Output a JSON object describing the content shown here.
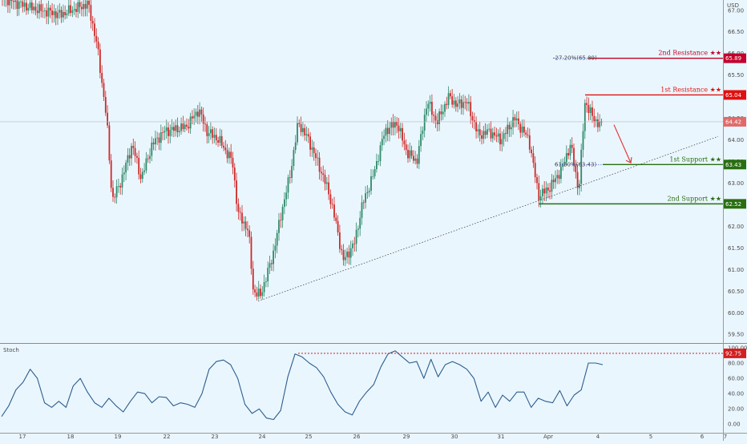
{
  "chart_data": {
    "type": "candlestick",
    "currency": "USD",
    "x_ticks": [
      "17",
      "18",
      "19",
      "22",
      "23",
      "24",
      "25",
      "26",
      "29",
      "30",
      "31",
      "Apr",
      "4",
      "5",
      "6",
      "7"
    ],
    "price_ticks": [
      "67.00",
      "66.50",
      "66.00",
      "65.50",
      "65.00",
      "64.50",
      "64.00",
      "63.50",
      "63.00",
      "62.50",
      "62.00",
      "61.50",
      "61.00",
      "60.50",
      "60.00",
      "59.50"
    ],
    "price_range": [
      59.3,
      67.2
    ],
    "current_price": "64.42",
    "levels": [
      {
        "name": "2nd Resistance",
        "stars": "★★",
        "value": "65.89",
        "color": "#c2002b"
      },
      {
        "name": "1st Resistance",
        "stars": "★★",
        "value": "65.04",
        "color": "#e01010"
      },
      {
        "name": "1st Support",
        "stars": "★★",
        "value": "63.43",
        "color": "#2a6e12"
      },
      {
        "name": "2nd Support",
        "stars": "★★",
        "value": "62.52",
        "color": "#2a6e12"
      }
    ],
    "fib_labels": {
      "upper": "-27.20%(65.89)",
      "lower": "61.80%(63.43)"
    },
    "trendline": {
      "from": {
        "x": "24",
        "y": 60.27
      },
      "to": {
        "x": "6",
        "y": 64.08
      }
    },
    "projection_arrow": {
      "from_y": 64.35,
      "to_y": 63.47
    },
    "oscillator": {
      "title": "Stoch",
      "ticks": [
        "100.00",
        "80.00",
        "60.00",
        "40.00",
        "20.00",
        "0.00"
      ],
      "range": [
        -5,
        100
      ],
      "level": "92.75",
      "series": [
        10,
        24,
        45,
        55,
        72,
        60,
        28,
        22,
        30,
        22,
        50,
        60,
        42,
        28,
        22,
        34,
        24,
        16,
        30,
        42,
        40,
        28,
        36,
        35,
        24,
        28,
        26,
        22,
        40,
        72,
        82,
        84,
        78,
        60,
        26,
        14,
        20,
        8,
        6,
        18,
        62,
        92,
        88,
        80,
        74,
        62,
        42,
        26,
        16,
        12,
        30,
        42,
        52,
        75,
        92,
        96,
        88,
        80,
        82,
        60,
        85,
        62,
        78,
        82,
        78,
        72,
        60,
        30,
        42,
        22,
        38,
        30,
        42,
        42,
        22,
        34,
        30,
        28,
        44,
        24,
        38,
        45,
        80,
        80,
        78
      ]
    },
    "colors": {
      "up": "#2f8a6a",
      "down": "#ce2a2a",
      "stoch": "#2b5d8f",
      "background": "#eaf6fd"
    },
    "grid": false
  }
}
